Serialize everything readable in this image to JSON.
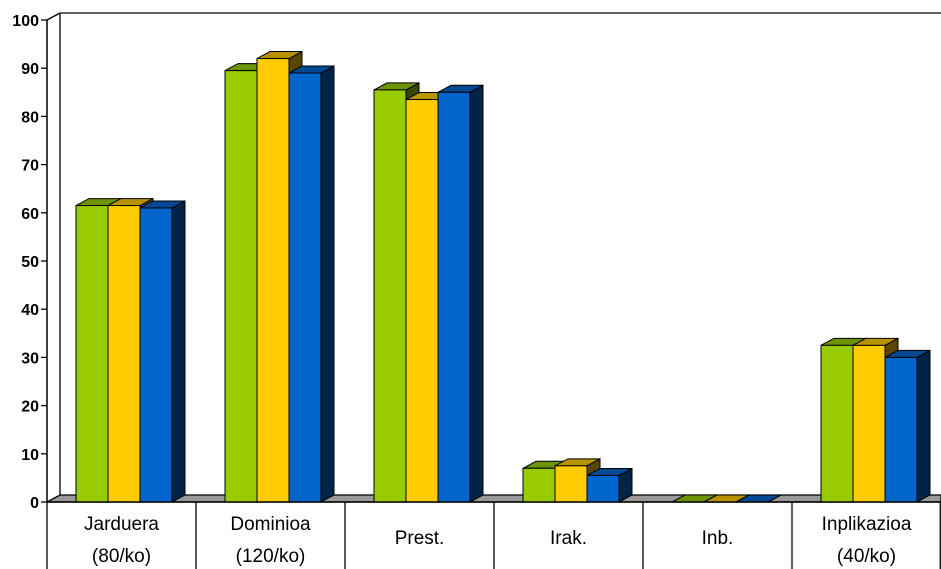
{
  "chart_data": {
    "type": "bar",
    "title": "",
    "xlabel": "",
    "ylabel": "",
    "ylim": [
      0,
      100
    ],
    "yticks": [
      "0",
      "10",
      "20",
      "30",
      "40",
      "50",
      "60",
      "70",
      "80",
      "90",
      "100"
    ],
    "categories": [
      [
        "Jarduera",
        "(80/ko)"
      ],
      [
        "Dominioa",
        "(120/ko)"
      ],
      [
        "Prest."
      ],
      [
        "Irak."
      ],
      [
        "Inb."
      ],
      [
        "Inplikazioa",
        "(40/ko)"
      ]
    ],
    "series": [
      {
        "color": "#99cc00",
        "values": [
          61.5,
          89.5,
          85.5,
          7,
          0,
          32.5
        ]
      },
      {
        "color": "#ffcc00",
        "values": [
          61.5,
          92,
          83.5,
          7.5,
          0,
          32.5
        ]
      },
      {
        "color": "#0066cc",
        "values": [
          61,
          89,
          85,
          5.5,
          0,
          30
        ]
      }
    ],
    "grid": false,
    "legend": "none",
    "bar_style": "3d"
  }
}
